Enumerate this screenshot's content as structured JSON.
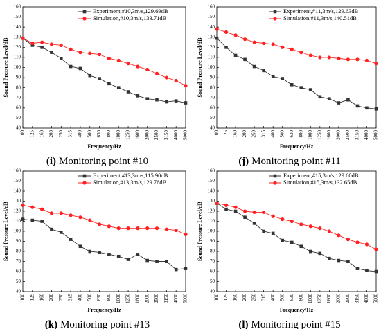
{
  "chart_data": [
    {
      "type": "line",
      "caption_label": "(i)",
      "caption": "Monitoring point #10",
      "x_label": "Frequency/Hz",
      "y_label": "Sound Pressure Level/dB",
      "categories": [
        "100",
        "125",
        "160",
        "200",
        "250",
        "315",
        "400",
        "500",
        "630",
        "800",
        "1000",
        "1250",
        "1600",
        "2000",
        "2500",
        "3150",
        "4000",
        "5000"
      ],
      "ylim": [
        40,
        160
      ],
      "yticks": [
        40,
        50,
        60,
        70,
        80,
        90,
        100,
        110,
        120,
        130,
        140,
        150,
        160
      ],
      "series": [
        {
          "name": "Experiment,#10,3m/s,129.69dB",
          "color": "#333333",
          "marker": "square",
          "values": [
            129,
            122,
            120,
            115,
            109,
            101,
            99,
            92,
            89,
            84,
            80,
            76,
            72,
            69,
            68,
            66,
            67,
            65
          ]
        },
        {
          "name": "Simulation,#10,3m/s,133.71dB",
          "color": "#ff2020",
          "marker": "circle",
          "values": [
            129,
            124,
            125,
            123,
            122,
            118,
            115,
            114,
            113,
            109,
            107,
            104,
            101,
            98,
            94,
            90,
            87,
            82
          ]
        }
      ]
    },
    {
      "type": "line",
      "caption_label": "(j)",
      "caption": "Monitoring point #11",
      "x_label": "Frequency/Hz",
      "y_label": "Sound Pressure Level/dB",
      "categories": [
        "100",
        "125",
        "160",
        "200",
        "250",
        "315",
        "400",
        "500",
        "630",
        "800",
        "1000",
        "1250",
        "1600",
        "2000",
        "2500",
        "3150",
        "4000",
        "5000"
      ],
      "ylim": [
        40,
        160
      ],
      "yticks": [
        40,
        50,
        60,
        70,
        80,
        90,
        100,
        110,
        120,
        130,
        140,
        150,
        160
      ],
      "series": [
        {
          "name": "Experiment,#11,3m/s,129.63dB",
          "color": "#333333",
          "marker": "square",
          "values": [
            129,
            120,
            112,
            108,
            101,
            97,
            91,
            89,
            83,
            80,
            78,
            71,
            69,
            65,
            68,
            62,
            60,
            59
          ]
        },
        {
          "name": "Simulation,#11,3m/s,140.51dB",
          "color": "#ff2020",
          "marker": "circle",
          "values": [
            138,
            135,
            132,
            128,
            125,
            124,
            123,
            120,
            118,
            115,
            112,
            110,
            110,
            109,
            108,
            108,
            107,
            104
          ]
        }
      ]
    },
    {
      "type": "line",
      "caption_label": "(k)",
      "caption": "Monitoring point #13",
      "x_label": "Frequency/Hz",
      "y_label": "Sound Pressure Level/dB",
      "categories": [
        "100",
        "125",
        "160",
        "200",
        "250",
        "315",
        "400",
        "500",
        "630",
        "800",
        "1000",
        "1250",
        "1600",
        "2000",
        "2500",
        "3150",
        "4000",
        "5000"
      ],
      "ylim": [
        40,
        160
      ],
      "yticks": [
        40,
        50,
        60,
        70,
        80,
        90,
        100,
        110,
        120,
        130,
        140,
        150,
        160
      ],
      "series": [
        {
          "name": "Experiment,#13,3m/s,115.90dB",
          "color": "#333333",
          "marker": "square",
          "values": [
            112,
            111,
            110,
            102,
            99,
            92,
            85,
            80,
            79,
            77,
            75,
            72,
            77,
            71,
            70,
            70,
            62,
            63
          ]
        },
        {
          "name": "Simulation,#13,3m/s,129.76dB",
          "color": "#ff2020",
          "marker": "circle",
          "values": [
            126,
            124,
            122,
            118,
            118,
            116,
            114,
            111,
            107,
            105,
            103,
            103,
            103,
            103,
            103,
            102,
            101,
            97
          ]
        }
      ]
    },
    {
      "type": "line",
      "caption_label": "(l)",
      "caption": "Monitoring point #15",
      "x_label": "Frequency/Hz",
      "y_label": "Sound Pressure Level/dB",
      "categories": [
        "100",
        "125",
        "160",
        "200",
        "250",
        "315",
        "400",
        "500",
        "630",
        "800",
        "1000",
        "1250",
        "1600",
        "2000",
        "2500",
        "3150",
        "4000",
        "5000"
      ],
      "ylim": [
        40,
        160
      ],
      "yticks": [
        40,
        50,
        60,
        70,
        80,
        90,
        100,
        110,
        120,
        130,
        140,
        150,
        160
      ],
      "series": [
        {
          "name": "Experiment,#15,3m/s,129.60dB",
          "color": "#333333",
          "marker": "square",
          "values": [
            128,
            122,
            120,
            114,
            108,
            100,
            98,
            91,
            89,
            85,
            80,
            78,
            73,
            71,
            70,
            63,
            61,
            60
          ]
        },
        {
          "name": "Simulation,#15,3m/s,132.65dB",
          "color": "#ff2020",
          "marker": "circle",
          "values": [
            128,
            126,
            124,
            120,
            119,
            119,
            115,
            112,
            110,
            107,
            105,
            103,
            100,
            96,
            92,
            89,
            87,
            82
          ]
        }
      ]
    }
  ]
}
